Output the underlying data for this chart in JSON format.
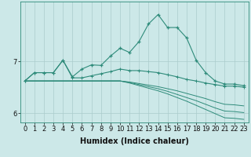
{
  "xlabel": "Humidex (Indice chaleur)",
  "x_values": [
    0,
    1,
    2,
    3,
    4,
    5,
    6,
    7,
    8,
    9,
    10,
    11,
    12,
    13,
    14,
    15,
    16,
    17,
    18,
    19,
    20,
    21,
    22,
    23
  ],
  "line1": [
    6.62,
    6.78,
    6.78,
    6.78,
    7.02,
    6.7,
    6.85,
    6.93,
    6.92,
    7.1,
    7.25,
    7.17,
    7.38,
    7.72,
    7.9,
    7.65,
    7.65,
    7.45,
    7.02,
    6.78,
    6.62,
    6.56,
    6.56,
    6.53
  ],
  "line2": [
    6.62,
    6.78,
    6.78,
    6.78,
    7.02,
    6.68,
    6.68,
    6.72,
    6.76,
    6.8,
    6.85,
    6.82,
    6.82,
    6.8,
    6.78,
    6.74,
    6.7,
    6.65,
    6.62,
    6.58,
    6.55,
    6.52,
    6.52,
    6.5
  ],
  "line3": [
    6.62,
    6.62,
    6.62,
    6.62,
    6.62,
    6.62,
    6.62,
    6.62,
    6.62,
    6.62,
    6.62,
    6.6,
    6.57,
    6.54,
    6.51,
    6.47,
    6.43,
    6.38,
    6.33,
    6.28,
    6.22,
    6.17,
    6.16,
    6.14
  ],
  "line4": [
    6.62,
    6.62,
    6.62,
    6.62,
    6.62,
    6.62,
    6.62,
    6.62,
    6.62,
    6.62,
    6.62,
    6.59,
    6.55,
    6.51,
    6.47,
    6.42,
    6.36,
    6.3,
    6.24,
    6.17,
    6.1,
    6.04,
    6.03,
    6.01
  ],
  "line5": [
    6.62,
    6.62,
    6.62,
    6.62,
    6.62,
    6.62,
    6.62,
    6.62,
    6.62,
    6.62,
    6.62,
    6.58,
    6.53,
    6.48,
    6.43,
    6.37,
    6.3,
    6.23,
    6.15,
    6.07,
    5.99,
    5.91,
    5.9,
    5.88
  ],
  "color": "#2e8b7a",
  "bg_color": "#cce8e8",
  "grid_color": "#aacccc",
  "ylim": [
    5.82,
    8.15
  ],
  "yticks": [
    6,
    7
  ],
  "label_fontsize": 7,
  "tick_fontsize": 6
}
